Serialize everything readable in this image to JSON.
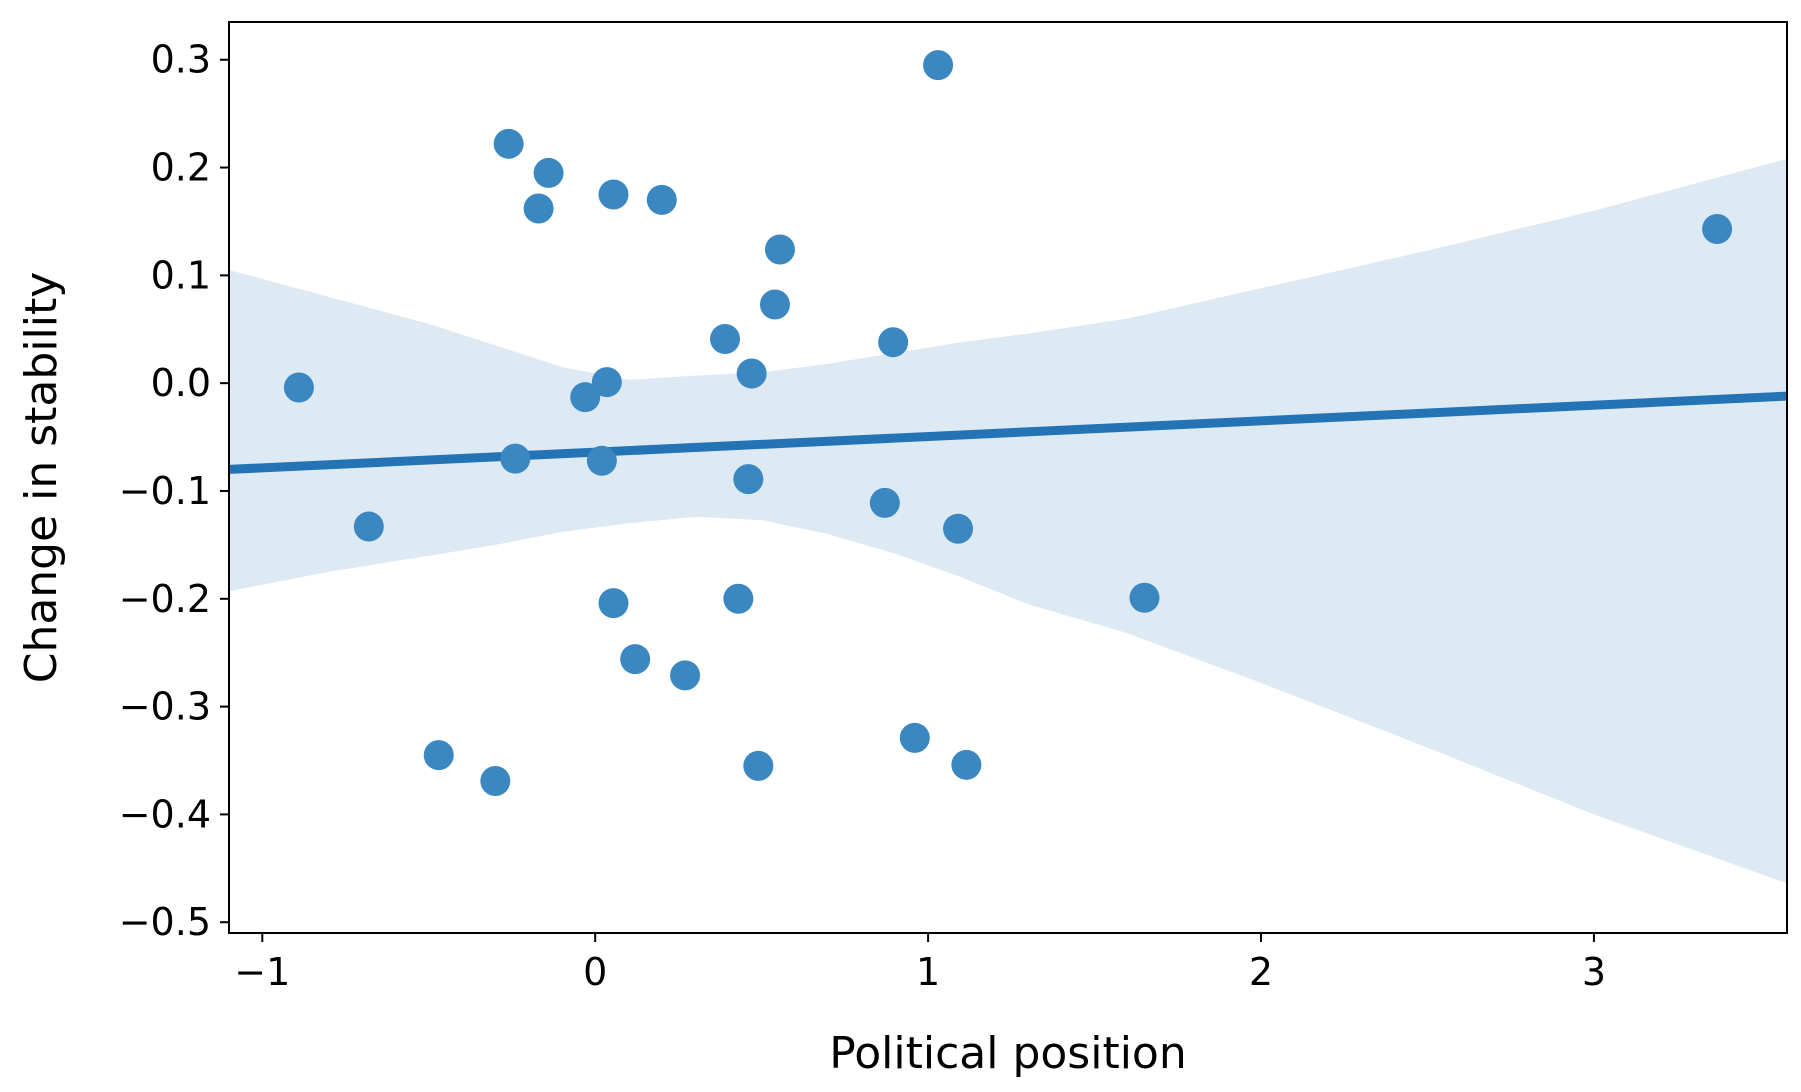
{
  "chart_data": {
    "type": "scatter",
    "title": "",
    "xlabel": "Political position",
    "ylabel": "Change in stability",
    "xlim": [
      -1.1,
      3.58
    ],
    "ylim": [
      -0.51,
      0.335
    ],
    "x_ticks": [
      -1,
      0,
      1,
      2,
      3
    ],
    "x_tick_labels": [
      "−1",
      "0",
      "1",
      "2",
      "3"
    ],
    "y_ticks": [
      0.3,
      0.2,
      0.1,
      0.0,
      -0.1,
      -0.2,
      -0.3,
      -0.4,
      -0.5
    ],
    "y_tick_labels": [
      "0.3",
      "0.2",
      "0.1",
      "0.0",
      "−0.1",
      "−0.2",
      "−0.3",
      "−0.4",
      "−0.5"
    ],
    "grid": false,
    "colors": {
      "points": "#3a87c2",
      "line": "#2474b5",
      "band": "#dde9f3"
    },
    "points": [
      {
        "x": -0.89,
        "y": -0.004
      },
      {
        "x": -0.68,
        "y": -0.133
      },
      {
        "x": -0.47,
        "y": -0.345
      },
      {
        "x": -0.3,
        "y": -0.369
      },
      {
        "x": -0.26,
        "y": 0.222
      },
      {
        "x": -0.24,
        "y": -0.07
      },
      {
        "x": -0.17,
        "y": 0.162
      },
      {
        "x": -0.14,
        "y": 0.195
      },
      {
        "x": -0.03,
        "y": -0.013
      },
      {
        "x": 0.02,
        "y": -0.072
      },
      {
        "x": 0.035,
        "y": 0.001
      },
      {
        "x": 0.055,
        "y": 0.175
      },
      {
        "x": 0.055,
        "y": -0.204
      },
      {
        "x": 0.12,
        "y": -0.256
      },
      {
        "x": 0.2,
        "y": 0.17
      },
      {
        "x": 0.27,
        "y": -0.271
      },
      {
        "x": 0.39,
        "y": 0.041
      },
      {
        "x": 0.43,
        "y": -0.2
      },
      {
        "x": 0.46,
        "y": -0.089
      },
      {
        "x": 0.47,
        "y": 0.009
      },
      {
        "x": 0.49,
        "y": -0.355
      },
      {
        "x": 0.54,
        "y": 0.073
      },
      {
        "x": 0.555,
        "y": 0.124
      },
      {
        "x": 0.87,
        "y": -0.111
      },
      {
        "x": 0.895,
        "y": 0.038
      },
      {
        "x": 0.96,
        "y": -0.329
      },
      {
        "x": 1.03,
        "y": 0.295
      },
      {
        "x": 1.09,
        "y": -0.135
      },
      {
        "x": 1.115,
        "y": -0.354
      },
      {
        "x": 1.65,
        "y": -0.199
      },
      {
        "x": 3.37,
        "y": 0.143
      }
    ],
    "regression_line": {
      "x": [
        -1.1,
        3.58
      ],
      "y": [
        -0.08,
        -0.012
      ]
    },
    "confidence_band": {
      "x": [
        -1.1,
        -0.8,
        -0.5,
        -0.3,
        -0.1,
        0.1,
        0.3,
        0.5,
        0.7,
        0.9,
        1.1,
        1.3,
        1.6,
        2.0,
        2.5,
        3.0,
        3.58
      ],
      "upper": [
        0.105,
        0.08,
        0.055,
        0.035,
        0.015,
        0.003,
        0.007,
        0.01,
        0.018,
        0.028,
        0.038,
        0.046,
        0.06,
        0.088,
        0.123,
        0.16,
        0.208
      ],
      "lower": [
        -0.193,
        -0.175,
        -0.16,
        -0.15,
        -0.138,
        -0.13,
        -0.124,
        -0.127,
        -0.14,
        -0.158,
        -0.18,
        -0.205,
        -0.232,
        -0.278,
        -0.338,
        -0.4,
        -0.464
      ]
    }
  }
}
